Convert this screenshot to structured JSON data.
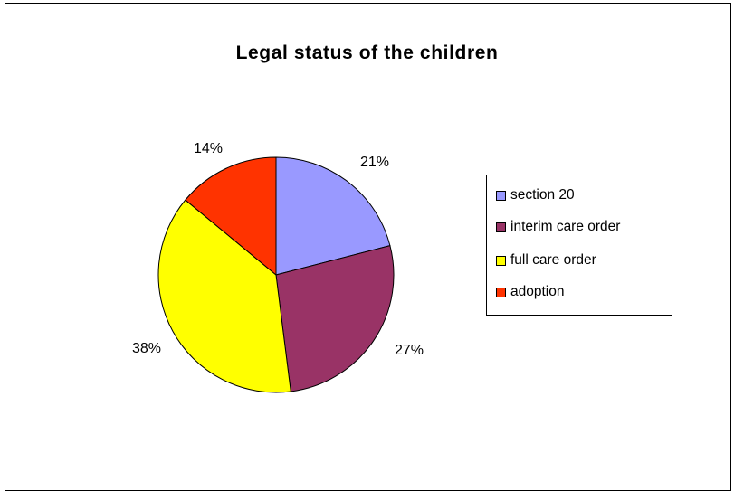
{
  "chart_data": {
    "type": "pie",
    "title": "Legal status of the children",
    "categories": [
      "section 20",
      "interim care order",
      "full care order",
      "adoption"
    ],
    "values": [
      21,
      27,
      38,
      14
    ],
    "labels": [
      "21%",
      "27%",
      "38%",
      "14%"
    ],
    "colors": [
      "#9999ff",
      "#993366",
      "#ffff00",
      "#ff3300"
    ],
    "start_angle_deg": 0,
    "direction": "clockwise",
    "legend_position": "right"
  }
}
